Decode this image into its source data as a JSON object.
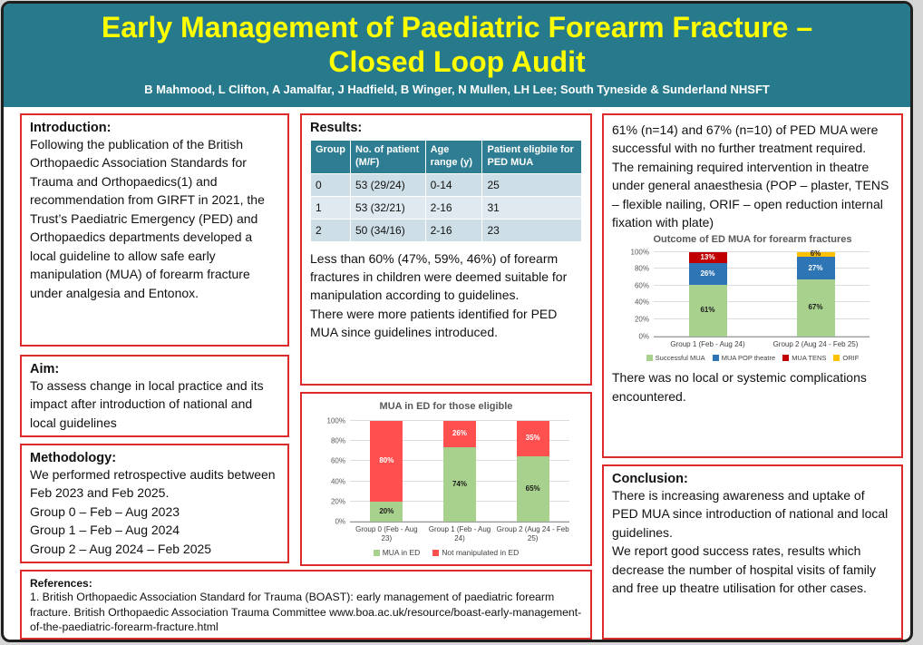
{
  "poster": {
    "title_line1": "Early Management of Paediatric Forearm Fracture –",
    "title_line2": "Closed Loop Audit",
    "authors": "B Mahmood, L Clifton, A Jamalfar, J Hadfield, B Winger, N Mullen, LH Lee; South Tyneside & Sunderland NHSFT"
  },
  "theme_colors": {
    "header_background": "#277A8C",
    "title_text": "#FFFF00",
    "box_border": "#DD2A2A",
    "table_header_background": "#2E7D92"
  },
  "sections": {
    "introduction": {
      "heading": "Introduction:",
      "body": "Following the publication of the British Orthopaedic Association Standards for Trauma and Orthopaedics(1) and recommendation from GIRFT in 2021, the Trust’s Paediatric Emergency (PED) and Orthopaedics departments developed a local guideline to allow safe early manipulation (MUA) of forearm fracture under analgesia and Entonox."
    },
    "aim": {
      "heading": "Aim:",
      "body": "To assess change in local practice and its impact after introduction of national and local guidelines"
    },
    "methodology": {
      "heading": "Methodology:",
      "body": "We performed retrospective audits between Feb 2023 and Feb 2025.\nGroup 0 – Feb – Aug 2023\nGroup 1 – Feb – Aug 2024\nGroup 2 – Aug 2024 – Feb 2025"
    },
    "results": {
      "heading": "Results:",
      "body": "Less than 60% (47%, 59%, 46%) of forearm fractures in children were deemed suitable for manipulation according to guidelines.\nThere were more patients identified for PED MUA since guidelines introduced."
    },
    "outcomes": {
      "body": "61% (n=14) and 67% (n=10) of PED MUA were successful with no further treatment required.\nThe remaining required intervention in theatre under general anaesthesia (POP – plaster, TENS – flexible nailing, ORIF – open reduction internal fixation with plate)",
      "complications": "There was no local or systemic complications encountered."
    },
    "conclusion": {
      "heading": "Conclusion:",
      "body": "There is increasing awareness and uptake of PED MUA since introduction of national and local guidelines.\nWe report good success rates, results which decrease the number of hospital visits of family and free up theatre utilisation for other cases."
    },
    "references": {
      "heading": "References:",
      "body": "1. British Orthopaedic Association Standard for Trauma (BOAST): early management of paediatric forearm fracture. British Orthopaedic Association Trauma Committee www.boa.ac.uk/resource/boast-early-management-of-the-paediatric-forearm-fracture.html"
    }
  },
  "results_table": {
    "headers": [
      "Group",
      "No. of patient (M/F)",
      "Age range (y)",
      "Patient eligbile for PED MUA"
    ],
    "rows": [
      [
        "0",
        "53 (29/24)",
        "0-14",
        "25"
      ],
      [
        "1",
        "53 (32/21)",
        "2-16",
        "31"
      ],
      [
        "2",
        "50 (34/16)",
        "2-16",
        "23"
      ]
    ]
  },
  "chart_data": [
    {
      "type": "bar",
      "stacked": true,
      "title": "MUA in ED for those eligible",
      "categories": [
        "Group 0 (Feb - Aug 23)",
        "Group 1 (Feb - Aug 24)",
        "Group 2 (Aug 24 - Feb 25)"
      ],
      "series": [
        {
          "name": "MUA in ED",
          "color": "#A9D18E",
          "label_color": "#1a1a1a",
          "values": [
            20,
            74,
            65
          ]
        },
        {
          "name": "Not manipulated in ED",
          "color": "#FF5050",
          "label_color": "#ffffff",
          "values": [
            80,
            26,
            35
          ]
        }
      ],
      "ylim": [
        0,
        100
      ],
      "yticks": [
        0,
        20,
        40,
        60,
        80,
        100
      ],
      "ylabel": "",
      "xlabel": "",
      "grid": true,
      "legend_position": "bottom"
    },
    {
      "type": "bar",
      "stacked": true,
      "title": "Outcome of ED MUA for forearm fractures",
      "categories": [
        "Group 1 (Feb - Aug 24)",
        "Group 2 (Aug 24 - Feb 25)"
      ],
      "series": [
        {
          "name": "Successful MUA",
          "color": "#A9D18E",
          "label_color": "#1a1a1a",
          "values": [
            61,
            67
          ]
        },
        {
          "name": "MUA POP theatre",
          "color": "#2E75B6",
          "label_color": "#ffffff",
          "values": [
            26,
            27
          ]
        },
        {
          "name": "MUA TENS",
          "color": "#C00000",
          "label_color": "#ffffff",
          "values": [
            13,
            0
          ]
        },
        {
          "name": "ORIF",
          "color": "#FFC000",
          "label_color": "#1a1a1a",
          "values": [
            0,
            6
          ]
        }
      ],
      "ylim": [
        0,
        100
      ],
      "yticks": [
        0,
        20,
        40,
        60,
        80,
        100
      ],
      "ylabel": "",
      "xlabel": "",
      "grid": true,
      "legend_position": "bottom"
    }
  ]
}
